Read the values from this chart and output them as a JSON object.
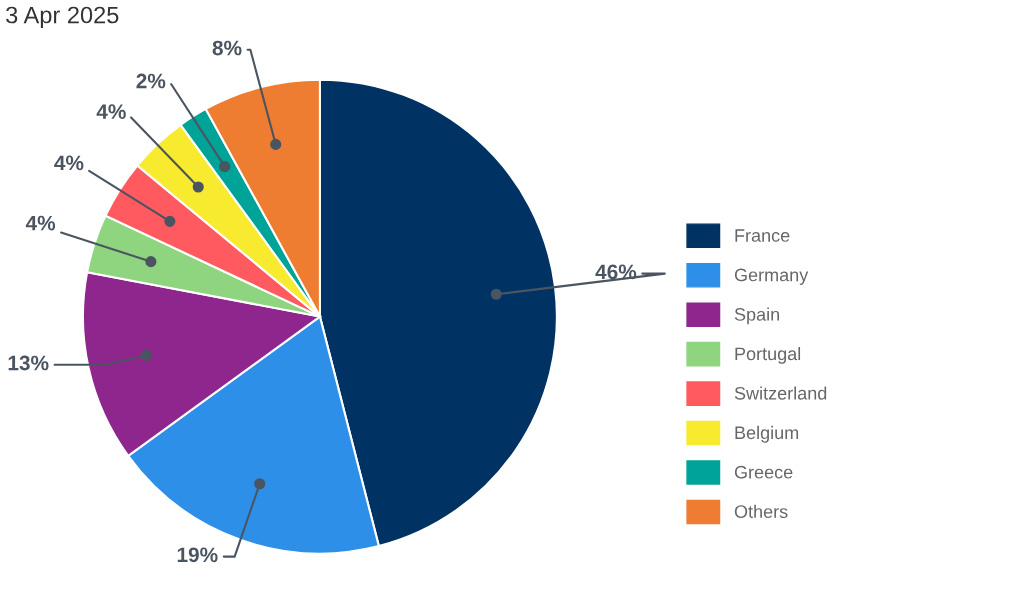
{
  "chart_data": {
    "type": "pie",
    "title": "3 Apr 2025",
    "categories": [
      "France",
      "Germany",
      "Spain",
      "Portugal",
      "Switzerland",
      "Belgium",
      "Greece",
      "Others"
    ],
    "values": [
      46,
      19,
      13,
      4,
      4,
      4,
      2,
      8
    ],
    "colors": [
      "#003263",
      "#2e8fe8",
      "#8e268e",
      "#8fd47f",
      "#ff5a5f",
      "#f8ea2e",
      "#00a398",
      "#ef7d31"
    ],
    "value_labels": [
      "46%",
      "19%",
      "13%",
      "4%",
      "4%",
      "4%",
      "2%",
      "8%"
    ],
    "legend": "right"
  }
}
